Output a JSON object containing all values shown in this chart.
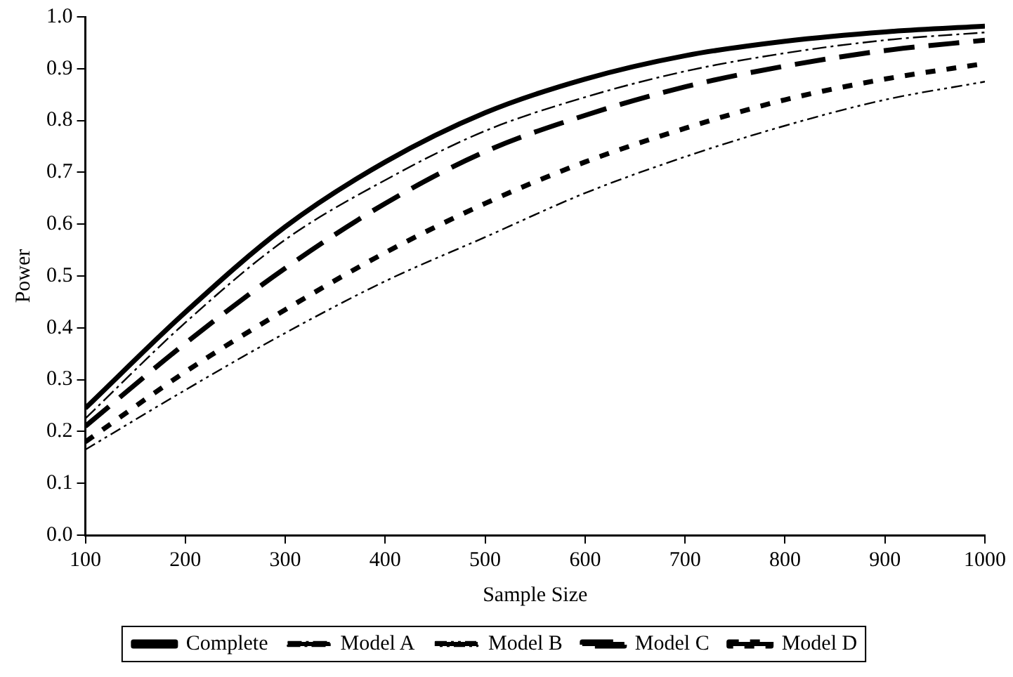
{
  "chart_data": {
    "type": "line",
    "xlabel": "Sample Size",
    "ylabel": "Power",
    "x": [
      100,
      200,
      300,
      400,
      500,
      600,
      700,
      800,
      900,
      1000
    ],
    "xlim": [
      100,
      1000
    ],
    "xticks": [
      100,
      200,
      300,
      400,
      500,
      600,
      700,
      800,
      900,
      1000
    ],
    "ylim": [
      0,
      1
    ],
    "yticks": [
      {
        "value": 0,
        "label": "0.0"
      },
      {
        "value": 0.1,
        "label": "0.1"
      },
      {
        "value": 0.2,
        "label": "0.2"
      },
      {
        "value": 0.3,
        "label": "0.3"
      },
      {
        "value": 0.4,
        "label": "0.4"
      },
      {
        "value": 0.5,
        "label": "0.5"
      },
      {
        "value": 0.6,
        "label": "0.6"
      },
      {
        "value": 0.7,
        "label": "0.7"
      },
      {
        "value": 0.8,
        "label": "0.8"
      },
      {
        "value": 0.9,
        "label": "0.9"
      },
      {
        "value": 1,
        "label": "1.0"
      }
    ],
    "grid": false,
    "legend": "bottom",
    "marker": "none",
    "series": [
      {
        "name": "Complete",
        "color": "#000000",
        "line_style": "solid",
        "values": [
          0.245,
          0.43,
          0.595,
          0.72,
          0.815,
          0.88,
          0.925,
          0.953,
          0.971,
          0.982
        ]
      },
      {
        "name": "Model A",
        "color": "#000000",
        "line_style": "dashed",
        "values": [
          0.225,
          0.41,
          0.57,
          0.685,
          0.78,
          0.845,
          0.895,
          0.93,
          0.955,
          0.97
        ]
      },
      {
        "name": "Model B",
        "color": "#000000",
        "line_style": "dashed",
        "values": [
          0.165,
          0.28,
          0.39,
          0.49,
          0.575,
          0.66,
          0.73,
          0.79,
          0.84,
          0.875
        ]
      },
      {
        "name": "Model C",
        "color": "#000000",
        "line_style": "dashed",
        "values": [
          0.21,
          0.37,
          0.515,
          0.64,
          0.74,
          0.81,
          0.865,
          0.905,
          0.935,
          0.955
        ]
      },
      {
        "name": "Model D",
        "color": "#000000",
        "line_style": "dashed",
        "values": [
          0.18,
          0.315,
          0.435,
          0.545,
          0.64,
          0.72,
          0.785,
          0.84,
          0.88,
          0.91
        ]
      }
    ]
  }
}
